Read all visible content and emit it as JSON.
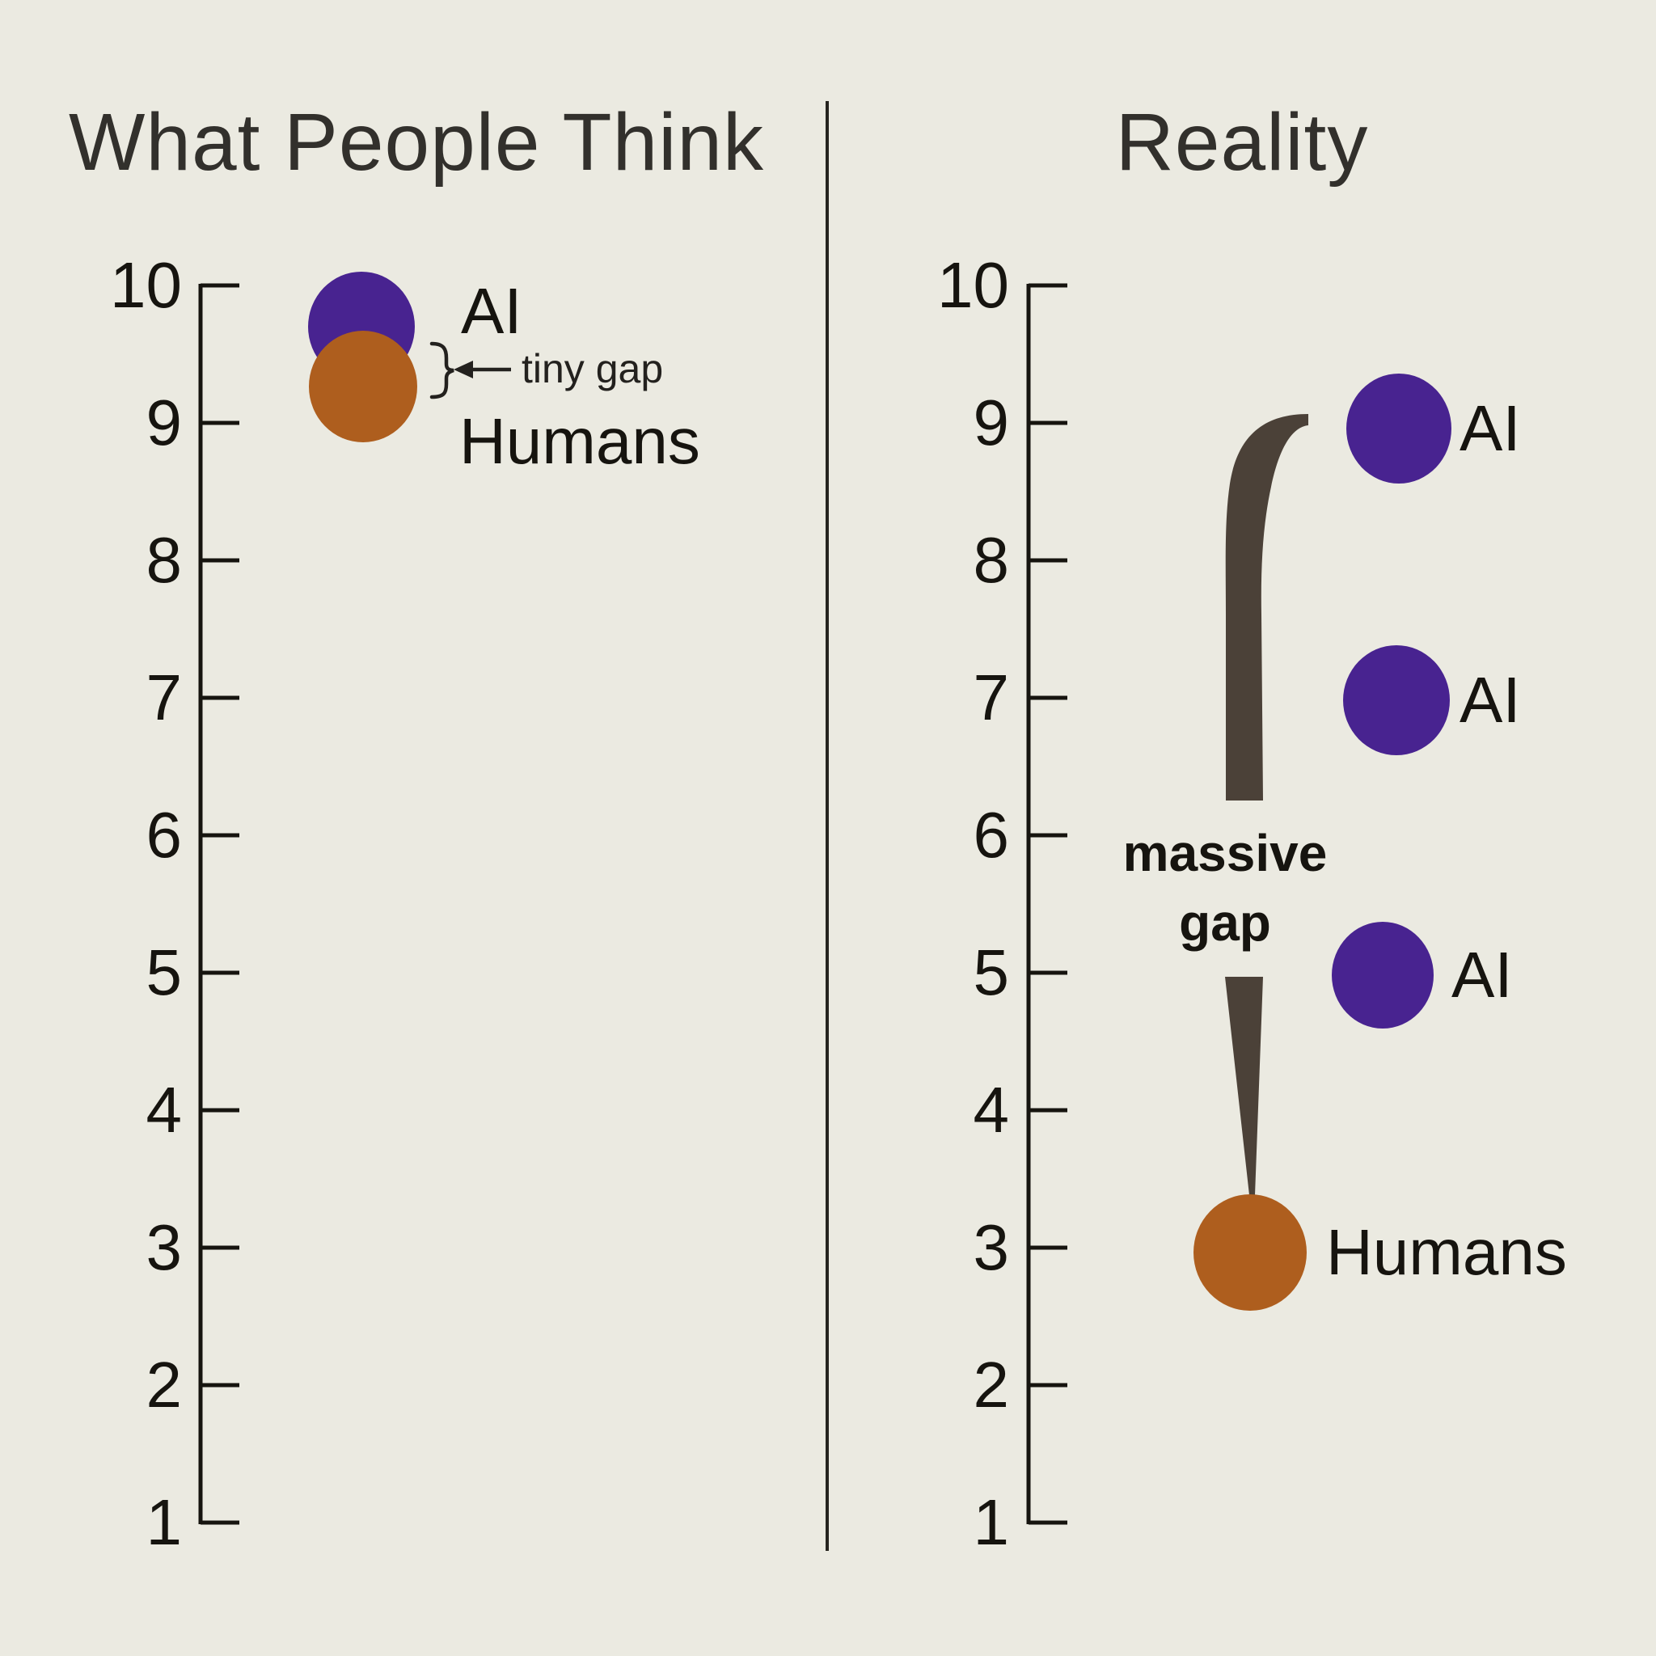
{
  "colors": {
    "background": "#EBEAE1",
    "axis": "#16140F",
    "text": "#16140F",
    "title": "#32302C",
    "divider": "#26241F",
    "ai_dot": "#482390",
    "humans_dot": "#AE5E1E",
    "gap_indicator": "#4B4138",
    "annotation": "#23211E"
  },
  "axis": {
    "min": 1,
    "max": 10,
    "ticks": [
      10,
      9,
      8,
      7,
      6,
      5,
      4,
      3,
      2,
      1
    ]
  },
  "left_panel": {
    "title": "What People Think",
    "points": [
      {
        "label": "AI",
        "value": 9.7,
        "series": "ai"
      },
      {
        "label": "Humans",
        "value": 9.3,
        "series": "humans"
      }
    ],
    "annotation": {
      "text": "tiny gap"
    }
  },
  "right_panel": {
    "title": "Reality",
    "points": [
      {
        "label": "AI",
        "value": 9,
        "series": "ai"
      },
      {
        "label": "AI",
        "value": 7,
        "series": "ai"
      },
      {
        "label": "AI",
        "value": 5,
        "series": "ai"
      },
      {
        "label": "Humans",
        "value": 3,
        "series": "humans"
      }
    ],
    "annotation": {
      "line1": "massive",
      "line2": "gap"
    }
  },
  "chart_data": [
    {
      "type": "scatter",
      "title": "What People Think",
      "ylabel": "",
      "ylim": [
        1,
        10
      ],
      "yticks": [
        1,
        2,
        3,
        4,
        5,
        6,
        7,
        8,
        9,
        10
      ],
      "grid": false,
      "legend_position": "inline-right-of-points",
      "series": [
        {
          "name": "AI",
          "values": [
            9.7
          ]
        },
        {
          "name": "Humans",
          "values": [
            9.3
          ]
        }
      ],
      "annotations": [
        "tiny gap"
      ]
    },
    {
      "type": "scatter",
      "title": "Reality",
      "ylabel": "",
      "ylim": [
        1,
        10
      ],
      "yticks": [
        1,
        2,
        3,
        4,
        5,
        6,
        7,
        8,
        9,
        10
      ],
      "grid": false,
      "legend_position": "inline-right-of-points",
      "series": [
        {
          "name": "AI",
          "values": [
            9,
            7,
            5
          ]
        },
        {
          "name": "Humans",
          "values": [
            3
          ]
        }
      ],
      "annotations": [
        "massive gap"
      ]
    }
  ]
}
